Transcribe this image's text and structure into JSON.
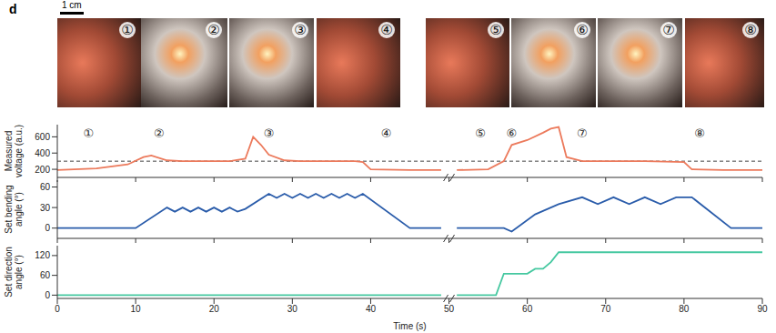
{
  "panel_label": "d",
  "scale_bar": "1 cm",
  "photos": [
    "①",
    "②",
    "③",
    "④",
    "⑤",
    "⑥",
    "⑦",
    "⑧"
  ],
  "chart_data": [
    {
      "type": "line",
      "y_label": "Measured voltage (a.u.)",
      "xlim": [
        0,
        90
      ],
      "xticks": [
        0,
        10,
        20,
        30,
        40,
        50,
        60,
        70,
        80,
        90
      ],
      "ylim": [
        100,
        750
      ],
      "yticks": [
        200,
        400,
        600
      ],
      "tick_labels": "y",
      "axis_break": 50,
      "threshold": {
        "value": 300,
        "line_style": "dashed"
      },
      "x": [
        0,
        5,
        9,
        11,
        12,
        14,
        16,
        18,
        20,
        22,
        24,
        25,
        26,
        27,
        29,
        31,
        35,
        38,
        39,
        40,
        45,
        49,
        50,
        51,
        55,
        57,
        58,
        60,
        62,
        63,
        64,
        65,
        67,
        70,
        75,
        80,
        81,
        85,
        90
      ],
      "series": [
        {
          "name": "Measured voltage",
          "color": "#ec7a5c",
          "values": [
            190,
            210,
            260,
            350,
            370,
            310,
            300,
            300,
            300,
            300,
            330,
            600,
            500,
            380,
            310,
            300,
            300,
            300,
            290,
            200,
            190,
            190,
            null,
            190,
            200,
            300,
            500,
            560,
            650,
            700,
            720,
            350,
            300,
            300,
            300,
            290,
            200,
            190,
            190
          ]
        }
      ],
      "annotations": [
        {
          "x": 4,
          "y": 640,
          "text": "①"
        },
        {
          "x": 13,
          "y": 640,
          "text": "②"
        },
        {
          "x": 27,
          "y": 640,
          "text": "③"
        },
        {
          "x": 42,
          "y": 640,
          "text": "④"
        },
        {
          "x": 54,
          "y": 640,
          "text": "⑤"
        },
        {
          "x": 58,
          "y": 640,
          "text": "⑥"
        },
        {
          "x": 67,
          "y": 640,
          "text": "⑦"
        },
        {
          "x": 82,
          "y": 640,
          "text": "⑧"
        }
      ]
    },
    {
      "type": "line",
      "y_label": "Set bending angle (°)",
      "xlim": [
        0,
        90
      ],
      "xticks": [
        0,
        10,
        20,
        30,
        40,
        50,
        60,
        70,
        80,
        90
      ],
      "ylim": [
        -15,
        70
      ],
      "yticks": [
        0,
        30,
        60
      ],
      "tick_labels": "y",
      "axis_break": 50,
      "x": [
        0,
        10,
        14,
        15,
        16,
        17,
        18,
        19,
        20,
        21,
        22,
        23,
        24,
        27,
        28,
        29,
        30,
        31,
        32,
        33,
        34,
        35,
        36,
        37,
        38,
        39,
        45,
        49,
        50,
        51,
        57,
        58,
        61,
        63,
        64,
        67,
        69,
        71,
        73,
        75,
        77,
        79,
        81,
        86,
        90
      ],
      "series": [
        {
          "name": "Set bending angle",
          "color": "#2a5caa",
          "values": [
            0,
            0,
            30,
            24,
            30,
            24,
            30,
            24,
            30,
            24,
            30,
            24,
            28,
            50,
            44,
            50,
            44,
            50,
            44,
            50,
            44,
            50,
            44,
            50,
            44,
            50,
            0,
            0,
            null,
            0,
            0,
            -5,
            20,
            30,
            35,
            45,
            35,
            45,
            35,
            45,
            35,
            45,
            45,
            0,
            0
          ]
        }
      ]
    },
    {
      "type": "line",
      "y_label": "Set direction angle (°)",
      "x_label": "Time (s)",
      "xlim": [
        0,
        90
      ],
      "xticks": [
        0,
        10,
        20,
        30,
        40,
        50,
        60,
        70,
        80,
        90
      ],
      "ylim": [
        -10,
        150
      ],
      "yticks": [
        0,
        60,
        120
      ],
      "axis_break": 50,
      "x": [
        0,
        49,
        50,
        51,
        56,
        57,
        60,
        61,
        62,
        63,
        64,
        90
      ],
      "series": [
        {
          "name": "Set direction angle",
          "color": "#45c8a0",
          "values": [
            0,
            0,
            null,
            0,
            0,
            65,
            65,
            80,
            80,
            100,
            130,
            130
          ]
        }
      ]
    }
  ]
}
